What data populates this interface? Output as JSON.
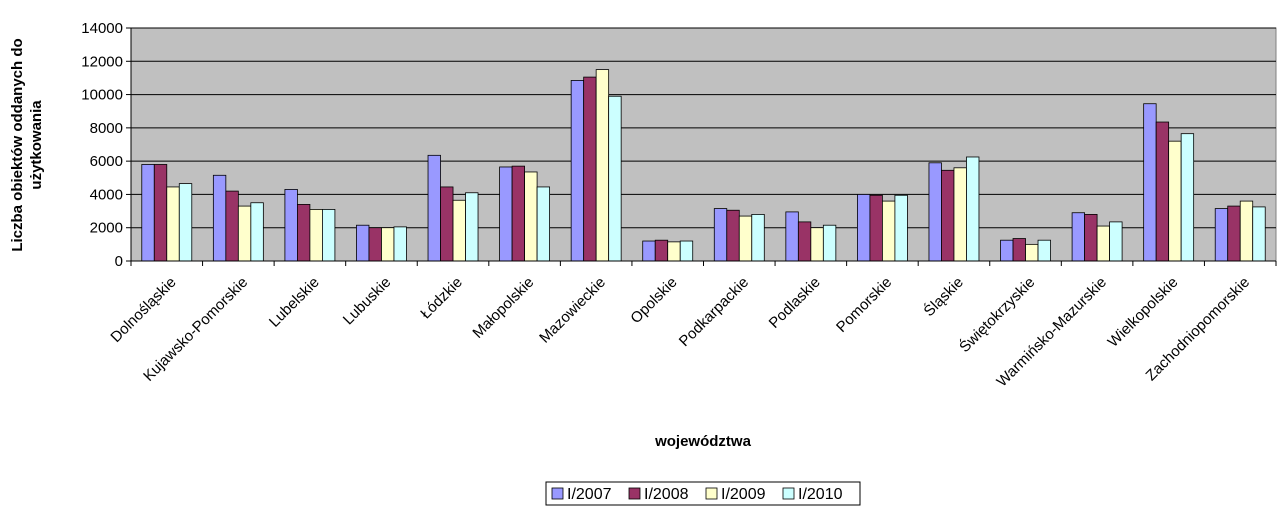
{
  "chart_data": {
    "type": "bar",
    "xlabel": "województwa",
    "ylabel_lines": [
      "Liczba obiektów oddanych do",
      "użytkowania"
    ],
    "ylim": [
      0,
      14000
    ],
    "ytick_step": 2000,
    "grid": true,
    "legend_position": "bottom",
    "categories": [
      "Dolnośląskie",
      "Kujawsko-Pomorskie",
      "Lubelskie",
      "Lubuskie",
      "Łódzkie",
      "Małopolskie",
      "Mazowieckie",
      "Opolskie",
      "Podkarpackie",
      "Podlaskie",
      "Pomorskie",
      "Śląskie",
      "Świętokrzyskie",
      "Warmińsko-Mazurskie",
      "Wielkopolskie",
      "Zachodniopomorskie"
    ],
    "series": [
      {
        "name": "I/2007",
        "color": "#9999ff",
        "values": [
          5800,
          5150,
          4300,
          2150,
          6350,
          5650,
          10850,
          1200,
          3150,
          2950,
          4000,
          5900,
          1250,
          2900,
          9450,
          3150
        ]
      },
      {
        "name": "I/2008",
        "color": "#993366",
        "values": [
          5800,
          4200,
          3400,
          2000,
          4450,
          5700,
          11050,
          1250,
          3050,
          2350,
          3950,
          5450,
          1350,
          2800,
          8350,
          3300
        ]
      },
      {
        "name": "I/2009",
        "color": "#ffffcc",
        "values": [
          4450,
          3300,
          3100,
          2000,
          3650,
          5350,
          11500,
          1150,
          2700,
          2000,
          3600,
          5600,
          1000,
          2100,
          7200,
          3600
        ]
      },
      {
        "name": "I/2010",
        "color": "#ccffff",
        "values": [
          4650,
          3500,
          3100,
          2050,
          4100,
          4450,
          9900,
          1200,
          2800,
          2150,
          3950,
          6250,
          1250,
          2350,
          7650,
          3250
        ]
      }
    ]
  }
}
